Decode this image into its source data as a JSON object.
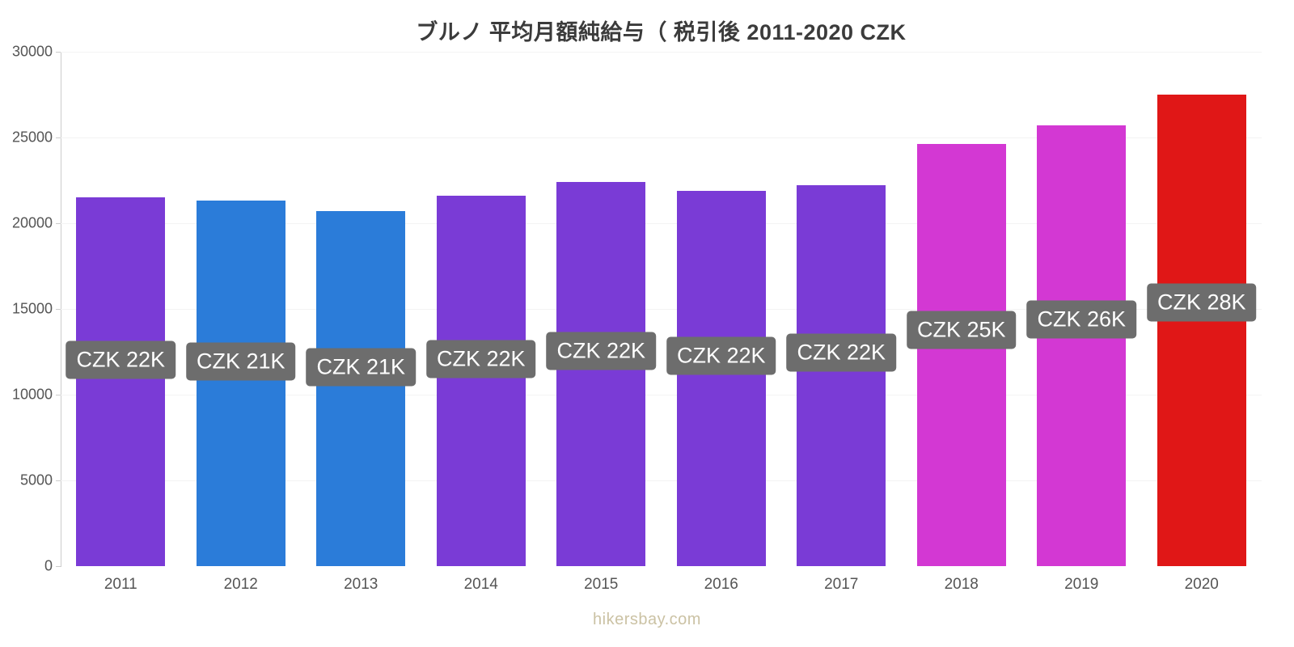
{
  "title": "ブルノ 平均月額純給与（ 税引後 2011-2020 CZK",
  "footer": "hikersbay.com",
  "chart_data": {
    "type": "bar",
    "title": "ブルノ 平均月額純給与（ 税引後 2011-2020 CZK",
    "categories": [
      "2011",
      "2012",
      "2013",
      "2014",
      "2015",
      "2016",
      "2017",
      "2018",
      "2019",
      "2020"
    ],
    "values": [
      21500,
      21300,
      20700,
      21600,
      22400,
      21900,
      22200,
      24600,
      25700,
      27500
    ],
    "bar_labels": [
      "CZK 22K",
      "CZK 21K",
      "CZK 21K",
      "CZK 22K",
      "CZK 22K",
      "CZK 22K",
      "CZK 22K",
      "CZK 25K",
      "CZK 26K",
      "CZK 28K"
    ],
    "colors": [
      "#7a3bd6",
      "#2b7cd9",
      "#2b7cd9",
      "#7a3bd6",
      "#7a3bd6",
      "#7a3bd6",
      "#7a3bd6",
      "#d338d3",
      "#d338d3",
      "#e01717"
    ],
    "label_bg": "#6d6d6d",
    "label_text_color": "#ffffff",
    "xlabel": "",
    "ylabel": "",
    "ylim": [
      0,
      30000
    ],
    "yticks": [
      0,
      5000,
      10000,
      15000,
      20000,
      25000,
      30000
    ],
    "grid": true,
    "legend": "none"
  }
}
